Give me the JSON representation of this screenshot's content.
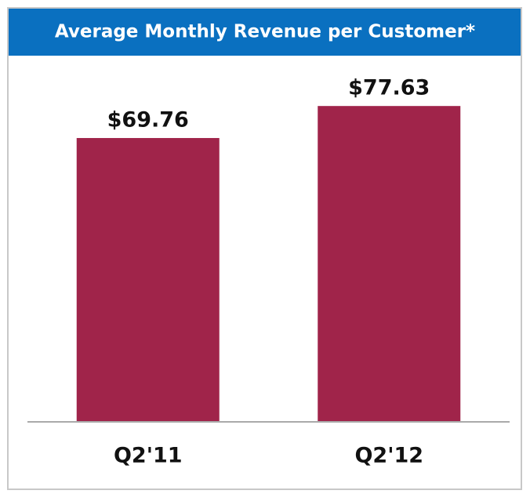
{
  "chart_data": {
    "type": "bar",
    "title": "Average Monthly Revenue per Customer*",
    "categories": [
      "Q2'11",
      "Q2'12"
    ],
    "values": [
      69.76,
      77.63
    ],
    "value_labels": [
      "$69.76",
      "$77.63"
    ],
    "color": "#a0244a",
    "ylim": [
      0,
      90
    ]
  }
}
